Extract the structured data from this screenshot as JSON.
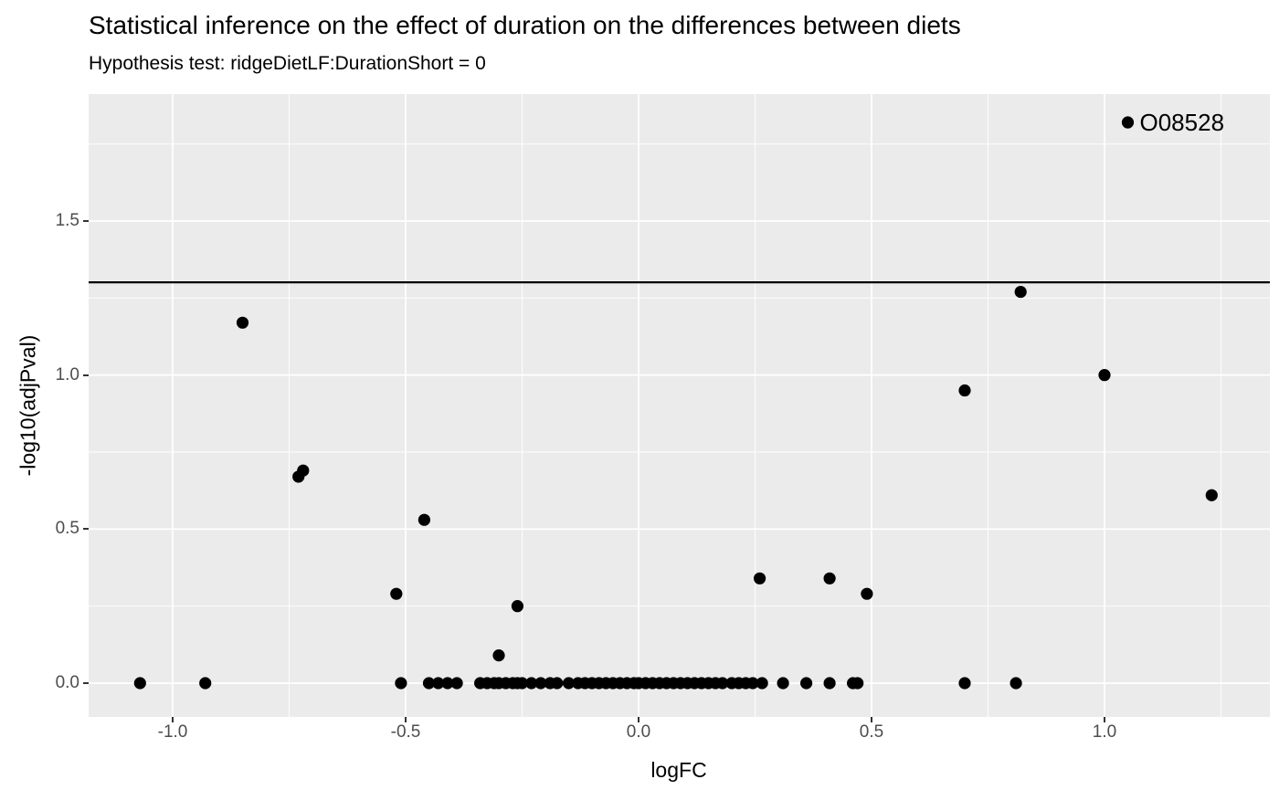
{
  "title": "Statistical inference on the effect of duration on the differences between diets",
  "subtitle": "Hypothesis test: ridgeDietLF:DurationShort = 0",
  "chart_data": {
    "type": "scatter",
    "title": "Statistical inference on the effect of duration on the differences between diets",
    "subtitle": "Hypothesis test: ridgeDietLF:DurationShort = 0",
    "xlabel": "logFC",
    "ylabel": "-log10(adjPval)",
    "xlim": [
      -1.1804,
      1.3549
    ],
    "ylim": [
      -0.1097,
      1.912
    ],
    "grid": true,
    "x_major_ticks": [
      -1.0,
      -0.5,
      0.0,
      0.5,
      1.0
    ],
    "x_tick_labels": [
      "-1.0",
      "-0.5",
      "0.0",
      "0.5",
      "1.0"
    ],
    "x_minor_ticks": [
      -0.75,
      -0.25,
      0.25,
      0.75,
      1.25
    ],
    "y_major_ticks": [
      0.0,
      0.5,
      1.0,
      1.5
    ],
    "y_tick_labels": [
      "0.0",
      "0.5",
      "1.0",
      "1.5"
    ],
    "y_minor_ticks": [
      0.25,
      0.75,
      1.25,
      1.75
    ],
    "hline": {
      "y": 1.301,
      "color": "#000000",
      "width": 2.2
    },
    "labeled_point": {
      "label": "O08528",
      "x": 1.05,
      "y": 1.82
    },
    "point_radius": 6.6,
    "colors": {
      "panel_bg": "#EBEBEB",
      "grid_major": "#FFFFFF",
      "grid_minor": "#FFFFFF",
      "point": "#000000",
      "tick_label": "#4D4D4D",
      "tick_mark": "#333333"
    },
    "points": [
      [
        -1.07,
        0
      ],
      [
        -0.93,
        0
      ],
      [
        -0.85,
        1.17
      ],
      [
        -0.73,
        0.67
      ],
      [
        -0.72,
        0.69
      ],
      [
        -0.52,
        0.29
      ],
      [
        -0.51,
        0
      ],
      [
        -0.46,
        0.53
      ],
      [
        -0.45,
        0
      ],
      [
        -0.43,
        0
      ],
      [
        -0.41,
        0
      ],
      [
        -0.39,
        0
      ],
      [
        -0.34,
        0
      ],
      [
        -0.325,
        0
      ],
      [
        -0.31,
        0
      ],
      [
        -0.3,
        0
      ],
      [
        -0.3,
        0.09
      ],
      [
        -0.285,
        0
      ],
      [
        -0.27,
        0
      ],
      [
        -0.26,
        0.25
      ],
      [
        -0.26,
        0
      ],
      [
        -0.25,
        0
      ],
      [
        -0.23,
        0
      ],
      [
        -0.21,
        0
      ],
      [
        -0.19,
        0
      ],
      [
        -0.175,
        0
      ],
      [
        -0.15,
        0
      ],
      [
        -0.13,
        0
      ],
      [
        -0.115,
        0
      ],
      [
        -0.1,
        0
      ],
      [
        -0.085,
        0
      ],
      [
        -0.07,
        0
      ],
      [
        -0.055,
        0
      ],
      [
        -0.04,
        0
      ],
      [
        -0.025,
        0
      ],
      [
        -0.01,
        0
      ],
      [
        0.0,
        0
      ],
      [
        0.015,
        0
      ],
      [
        0.03,
        0
      ],
      [
        0.045,
        0
      ],
      [
        0.06,
        0
      ],
      [
        0.075,
        0
      ],
      [
        0.09,
        0
      ],
      [
        0.105,
        0
      ],
      [
        0.12,
        0
      ],
      [
        0.135,
        0
      ],
      [
        0.15,
        0
      ],
      [
        0.165,
        0
      ],
      [
        0.18,
        0
      ],
      [
        0.2,
        0
      ],
      [
        0.215,
        0
      ],
      [
        0.23,
        0
      ],
      [
        0.245,
        0
      ],
      [
        0.265,
        0
      ],
      [
        0.26,
        0.34
      ],
      [
        0.31,
        0
      ],
      [
        0.36,
        0
      ],
      [
        0.41,
        0.34
      ],
      [
        0.41,
        0
      ],
      [
        0.46,
        0
      ],
      [
        0.47,
        0
      ],
      [
        0.49,
        0.29
      ],
      [
        0.7,
        0.95
      ],
      [
        0.7,
        0
      ],
      [
        0.81,
        0
      ],
      [
        0.82,
        1.27
      ],
      [
        1.0,
        1.0
      ],
      [
        1.05,
        1.82
      ],
      [
        1.23,
        0.61
      ]
    ]
  }
}
